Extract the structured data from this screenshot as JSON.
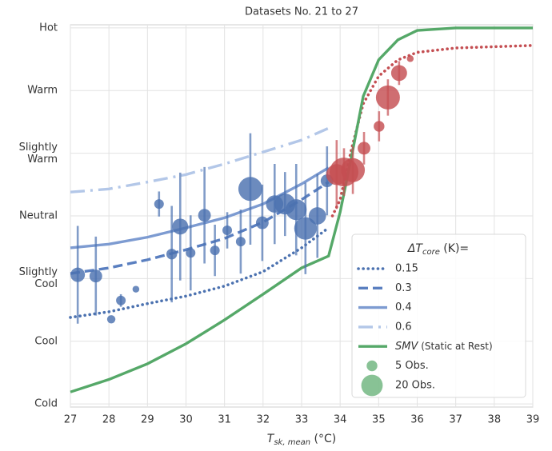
{
  "chart_data": {
    "type": "scatter",
    "title": "Datasets No. 21 to 27",
    "x_label": {
      "main": "T",
      "sub": "sk, mean",
      "rest": " (°C)"
    },
    "xlim": [
      27,
      39
    ],
    "xticks": [
      27,
      28,
      29,
      30,
      31,
      32,
      33,
      34,
      35,
      36,
      37,
      38,
      39
    ],
    "ylim": [
      -3.05,
      3.05
    ],
    "yticks": [
      {
        "value": -3,
        "label": "Cold"
      },
      {
        "value": -2,
        "label": "Cool"
      },
      {
        "value": -1,
        "label": "Slightly Cool"
      },
      {
        "value": 0,
        "label": "Neutral"
      },
      {
        "value": 1,
        "label": "Slightly Warm"
      },
      {
        "value": 2,
        "label": "Warm"
      },
      {
        "value": 3,
        "label": "Hot"
      }
    ],
    "grid": true,
    "legend_title": {
      "main": "ΔT",
      "sub": "core",
      "rest": " (K)="
    },
    "series": [
      {
        "name": "0.15",
        "color": "#4c72b0",
        "style": "dotted",
        "x": [
          27,
          28,
          29,
          30,
          31,
          32,
          33,
          33.7
        ],
        "values": [
          -1.62,
          -1.53,
          -1.4,
          -1.28,
          -1.12,
          -0.89,
          -0.51,
          -0.19
        ]
      },
      {
        "name": "0.3",
        "color": "#5a7fc0",
        "style": "dashed",
        "x": [
          27,
          28,
          29,
          30,
          31,
          32,
          33,
          33.7
        ],
        "values": [
          -0.92,
          -0.83,
          -0.7,
          -0.54,
          -0.36,
          -0.1,
          0.26,
          0.54
        ]
      },
      {
        "name": "0.4",
        "color": "#7d9bd1",
        "style": "solid",
        "x": [
          27,
          28,
          29,
          30,
          31,
          32,
          33,
          33.7
        ],
        "values": [
          -0.51,
          -0.45,
          -0.34,
          -0.19,
          -0.03,
          0.19,
          0.51,
          0.77
        ]
      },
      {
        "name": "0.6",
        "color": "#b3c7e8",
        "style": "dashdot",
        "x": [
          27,
          28,
          29,
          30,
          31,
          32,
          33,
          33.7
        ],
        "values": [
          0.38,
          0.43,
          0.54,
          0.66,
          0.83,
          1.02,
          1.21,
          1.4
        ]
      },
      {
        "color": "#c44e52",
        "style": "dotted",
        "x": [
          33.8,
          34,
          34.3,
          34.6,
          35,
          35.5,
          36,
          37,
          38,
          39
        ],
        "values": [
          0,
          0.26,
          1.08,
          1.79,
          2.23,
          2.49,
          2.61,
          2.68,
          2.7,
          2.72
        ]
      },
      {
        "name": {
          "italic": "SMV",
          "rest": " (Static at Rest)"
        },
        "color": "#55a868",
        "style": "solid",
        "x": [
          27,
          28,
          29,
          30,
          31,
          32,
          33,
          33.7,
          34,
          34.3,
          34.6,
          35,
          35.5,
          36,
          37,
          39
        ],
        "values": [
          -2.81,
          -2.61,
          -2.36,
          -2.04,
          -1.66,
          -1.25,
          -0.83,
          -0.64,
          0.06,
          0.96,
          1.91,
          2.49,
          2.81,
          2.96,
          3,
          3
        ]
      }
    ],
    "points": [
      {
        "color": "#4c72b0",
        "x": [
          27.19,
          27.66,
          28.06,
          28.31,
          28.7,
          29.3,
          29.63,
          29.85,
          30.12,
          30.48,
          30.75,
          31.07,
          31.42,
          31.67,
          31.98,
          32.3,
          32.57,
          32.86,
          33.1,
          33.41,
          33.66
        ],
        "values": [
          -0.94,
          -0.96,
          -1.65,
          -1.35,
          -1.17,
          0.19,
          -0.61,
          -0.17,
          -0.59,
          0.01,
          -0.55,
          -0.23,
          -0.41,
          0.43,
          -0.11,
          0.19,
          0.19,
          0.1,
          -0.2,
          0,
          0.56
        ],
        "sizes": [
          9,
          7,
          3,
          4,
          2,
          4,
          5,
          11,
          4,
          7,
          4,
          4,
          4,
          25,
          7,
          13,
          19,
          19,
          22,
          13,
          7
        ],
        "errors": [
          0.78,
          0.63,
          0,
          0.1,
          0,
          0.2,
          0.77,
          0.86,
          0.6,
          0.77,
          0.41,
          0.29,
          0.51,
          0.89,
          0.61,
          0.64,
          0.51,
          0.73,
          0.73,
          0.67,
          0.55
        ]
      },
      {
        "color": "#c44e52",
        "x": [
          33.91,
          34.1,
          34.33,
          34.62,
          35.01,
          35.24,
          35.53,
          35.82
        ],
        "values": [
          0.66,
          0.7,
          0.73,
          1.08,
          1.43,
          1.89,
          2.28,
          2.51
        ],
        "sizes": [
          19,
          36,
          25,
          7,
          5,
          25,
          11,
          2
        ],
        "errors": [
          0.55,
          0.38,
          0.38,
          0.26,
          0.24,
          0.29,
          0.19,
          0
        ]
      }
    ],
    "size_legend": {
      "color": "#55a868",
      "entries": [
        {
          "n": 5,
          "label": "5 Obs."
        },
        {
          "n": 20,
          "label": "20 Obs."
        }
      ]
    }
  }
}
